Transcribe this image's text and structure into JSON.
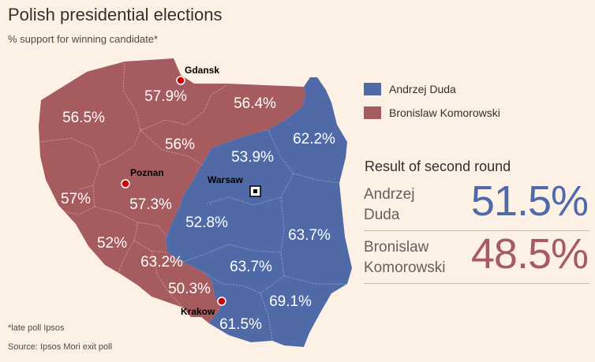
{
  "header": {
    "title": "Polish presidential elections",
    "subtitle": "% support for winning candidate*"
  },
  "colors": {
    "duda": "#4f6aa7",
    "komorowski": "#a65b5f",
    "background": "#fdf1e5"
  },
  "legend": {
    "items": [
      {
        "label": "Andrzej Duda",
        "color": "#4f6aa7"
      },
      {
        "label": "Bronislaw Komorowski",
        "color": "#a65b5f"
      }
    ]
  },
  "results": {
    "title": "Result of second round",
    "candidates": [
      {
        "name_line1": "Andrzej",
        "name_line2": "Duda",
        "pct": "51.5%",
        "color": "#4f6aa7"
      },
      {
        "name_line1": "Bronislaw",
        "name_line2": "Komorowski",
        "pct": "48.5%",
        "color": "#a65b5f"
      }
    ]
  },
  "map": {
    "regions": [
      {
        "value": "56.5%",
        "winner": "komorowski"
      },
      {
        "value": "57.9%",
        "winner": "komorowski"
      },
      {
        "value": "56.4%",
        "winner": "komorowski"
      },
      {
        "value": "56%",
        "winner": "komorowski"
      },
      {
        "value": "57%",
        "winner": "komorowski"
      },
      {
        "value": "57.3%",
        "winner": "komorowski"
      },
      {
        "value": "52%",
        "winner": "komorowski"
      },
      {
        "value": "63.2%",
        "winner": "komorowski"
      },
      {
        "value": "50.3%",
        "winner": "komorowski"
      },
      {
        "value": "62.2%",
        "winner": "duda"
      },
      {
        "value": "53.9%",
        "winner": "duda"
      },
      {
        "value": "52.8%",
        "winner": "duda"
      },
      {
        "value": "63.7%",
        "winner": "duda"
      },
      {
        "value": "63.7%",
        "winner": "duda"
      },
      {
        "value": "69.1%",
        "winner": "duda"
      },
      {
        "value": "61.5%",
        "winner": "duda"
      }
    ],
    "cities": [
      {
        "name": "Gdansk",
        "marker": "red-dot"
      },
      {
        "name": "Poznan",
        "marker": "red-dot"
      },
      {
        "name": "Warsaw",
        "marker": "capital-square"
      },
      {
        "name": "Krakow",
        "marker": "red-dot"
      }
    ]
  },
  "footer": {
    "footnote": "*late poll Ipsos",
    "source": "Source: Ipsos Mori exit poll"
  }
}
